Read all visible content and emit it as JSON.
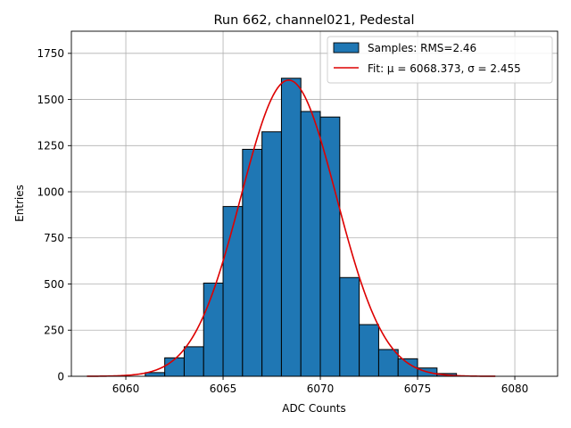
{
  "chart_data": {
    "type": "bar",
    "title": "Run 662, channel021, Pedestal",
    "xlabel": "ADC Counts",
    "ylabel": "Entries",
    "xlim": [
      6057.2,
      6082.2
    ],
    "ylim": [
      0,
      1870
    ],
    "xticks": [
      6060,
      6065,
      6070,
      6075,
      6080
    ],
    "yticks": [
      0,
      250,
      500,
      750,
      1000,
      1250,
      1500,
      1750
    ],
    "grid": true,
    "legend_position": "top-right",
    "bins": {
      "edges": [
        6061,
        6062,
        6063,
        6064,
        6065,
        6066,
        6067,
        6068,
        6069,
        6070,
        6071,
        6072,
        6073,
        6074,
        6075,
        6076,
        6077
      ],
      "counts": [
        20,
        100,
        160,
        505,
        920,
        1230,
        1325,
        1615,
        1435,
        1405,
        535,
        280,
        145,
        95,
        45,
        15
      ]
    },
    "fit": {
      "mu": 6068.373,
      "sigma": 2.455,
      "amplitude": 1605,
      "x_range": [
        6058,
        6079
      ]
    },
    "series": [
      {
        "name": "Samples: RMS=2.46",
        "color": "#1f77b4",
        "kind": "histogram"
      },
      {
        "name": "Fit: μ = 6068.373, σ = 2.455",
        "color": "#dd0000",
        "kind": "line"
      }
    ]
  }
}
